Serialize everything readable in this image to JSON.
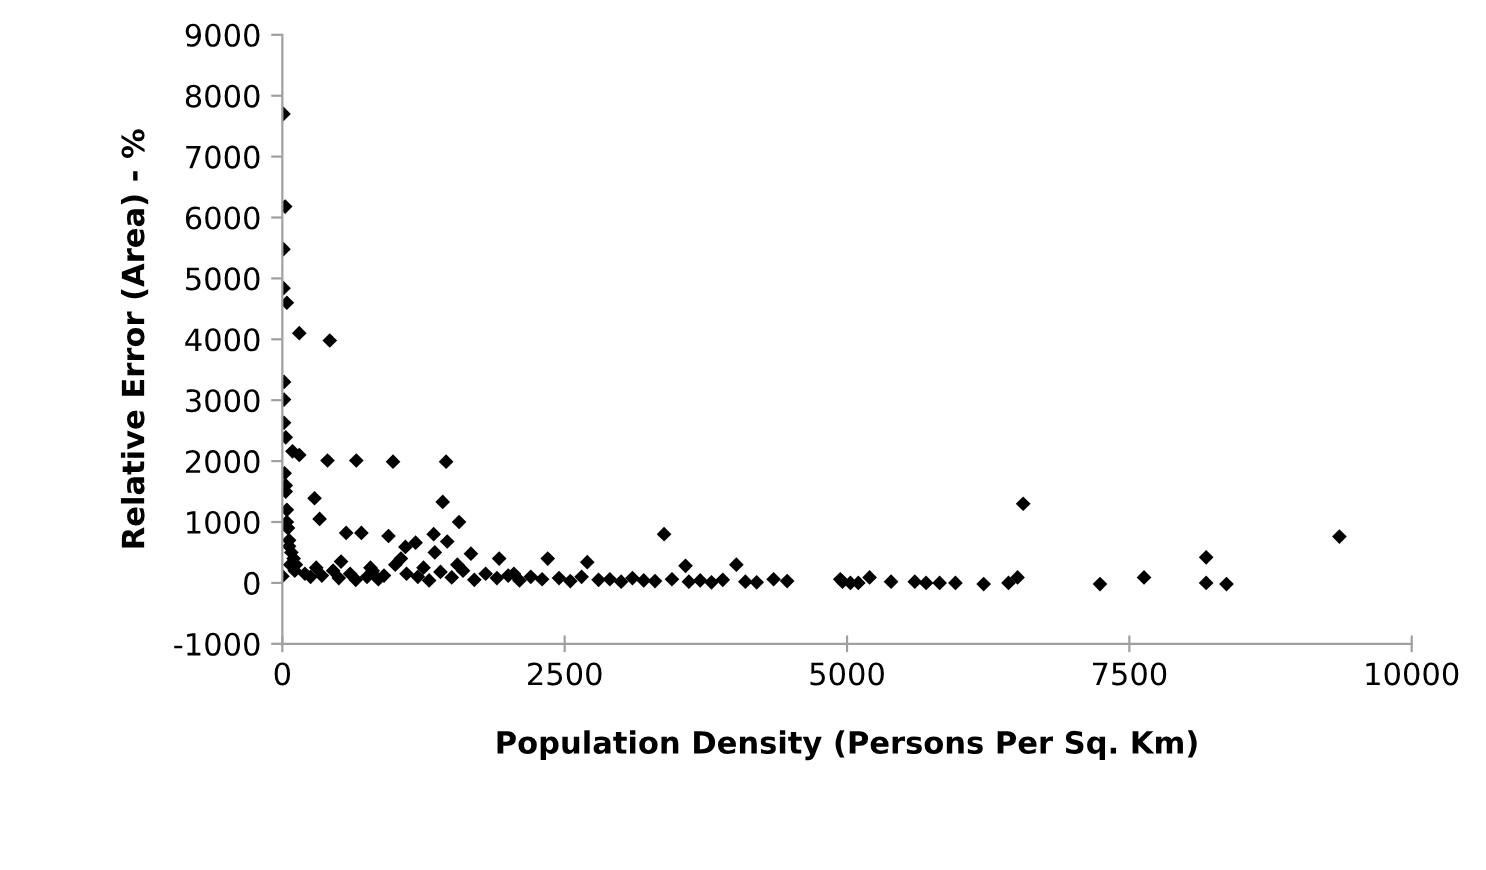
{
  "chart_data": {
    "type": "scatter",
    "xlabel": "Population Density (Persons Per Sq. Km)",
    "ylabel": "Relative Error (Area) - %",
    "xlim": [
      0,
      10000
    ],
    "ylim": [
      -1000,
      9000
    ],
    "xticks": [
      0,
      2500,
      5000,
      7500,
      10000
    ],
    "yticks": [
      -1000,
      0,
      1000,
      2000,
      3000,
      4000,
      5000,
      6000,
      7000,
      8000,
      9000
    ],
    "grid": false,
    "legend": false,
    "marker": "diamond",
    "series": [
      {
        "color": "#000000",
        "x": [
          10,
          25,
          10,
          10,
          40,
          150,
          420,
          15,
          15,
          15,
          30,
          90,
          150,
          400,
          655,
          980,
          1450,
          285,
          1420,
          330,
          1565,
          565,
          700,
          940,
          1180,
          1340,
          1460,
          1090,
          1350,
          3380,
          3570,
          4020,
          2350,
          2700,
          1670,
          1920,
          4350,
          4470,
          4940,
          5030,
          0,
          20,
          30,
          40,
          50,
          60,
          80,
          100,
          120,
          40,
          60,
          30,
          70,
          110,
          200,
          250,
          300,
          350,
          450,
          500,
          600,
          650,
          750,
          800,
          850,
          900,
          1000,
          1100,
          1200,
          1250,
          1300,
          1400,
          1500,
          1600,
          1700,
          1800,
          1900,
          2000,
          2100,
          2200,
          2300,
          2450,
          2550,
          2650,
          2800,
          2900,
          3000,
          3100,
          3200,
          3300,
          3450,
          3600,
          3700,
          3800,
          3900,
          4100,
          4200,
          520,
          780,
          1050,
          1550,
          2050,
          4960,
          5100,
          5200,
          5390,
          5600,
          5700,
          5820,
          5960,
          6210,
          6430,
          6510,
          6560,
          7240,
          7630,
          8180,
          8180,
          8360,
          9360
        ],
        "values": [
          7700,
          6180,
          5480,
          4840,
          4600,
          4100,
          3980,
          3300,
          3010,
          2630,
          2390,
          2160,
          2100,
          2010,
          2010,
          1990,
          1990,
          1390,
          1330,
          1050,
          1000,
          820,
          820,
          770,
          660,
          800,
          680,
          590,
          500,
          800,
          280,
          300,
          400,
          340,
          480,
          400,
          60,
          30,
          60,
          0,
          110,
          1800,
          1500,
          1200,
          900,
          700,
          500,
          400,
          300,
          1000,
          600,
          1600,
          300,
          200,
          150,
          100,
          250,
          120,
          200,
          80,
          150,
          50,
          100,
          200,
          60,
          120,
          300,
          150,
          100,
          250,
          40,
          180,
          90,
          200,
          50,
          150,
          80,
          120,
          40,
          100,
          60,
          80,
          30,
          100,
          50,
          60,
          20,
          80,
          40,
          30,
          60,
          20,
          40,
          10,
          50,
          20,
          10,
          350,
          250,
          400,
          300,
          150,
          20,
          0,
          90,
          20,
          20,
          0,
          0,
          0,
          -20,
          0,
          90,
          1300,
          -20,
          90,
          420,
          0,
          -20,
          760
        ]
      }
    ]
  }
}
